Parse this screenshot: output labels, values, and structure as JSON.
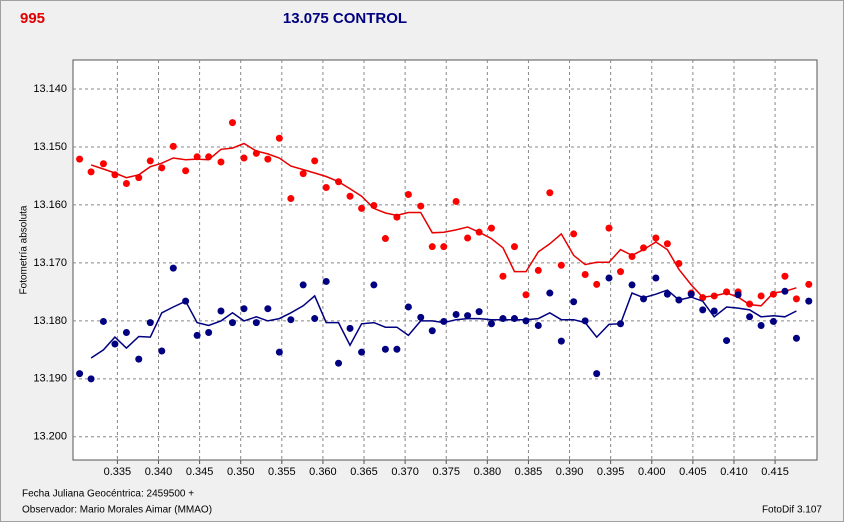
{
  "chart_data": {
    "type": "scatter",
    "label": "995",
    "title": "13.075 CONTROL",
    "ylabel": "Fotometría absoluta",
    "xlabel": "Fecha Juliana Geocéntrica: 2459500 +",
    "observer": "Observador: Mario Morales Aimar (MMAO)",
    "software": "FotoDif 3.107",
    "grid": true,
    "xlim": [
      0.3296,
      0.4201
    ],
    "ylim": [
      13.204,
      13.135
    ],
    "xticks": [
      0.335,
      {
        "value": 0.34,
        "label": "0.340"
      },
      0.345,
      {
        "value": 0.35,
        "label": "0.350"
      },
      0.355,
      {
        "value": 0.36,
        "label": "0.360"
      },
      0.365,
      {
        "value": 0.37,
        "label": "0.370"
      },
      0.375,
      {
        "value": 0.38,
        "label": "0.380"
      },
      0.385,
      {
        "value": 0.39,
        "label": "0.390"
      },
      0.395,
      {
        "value": 0.4,
        "label": "0.400"
      },
      0.405,
      {
        "value": 0.41,
        "label": "0.410"
      },
      0.415
    ],
    "yticks": [
      {
        "value": 13.14,
        "label": "13.140"
      },
      {
        "value": 13.15,
        "label": "13.150"
      },
      {
        "value": 13.16,
        "label": "13.160"
      },
      {
        "value": 13.17,
        "label": "13.170"
      },
      {
        "value": 13.18,
        "label": "13.180"
      },
      {
        "value": 13.19,
        "label": "13.190"
      },
      {
        "value": 13.2,
        "label": "13.200"
      }
    ],
    "x": [
      0.3304,
      0.3318,
      0.3333,
      0.3347,
      0.3361,
      0.3376,
      0.339,
      0.3404,
      0.3418,
      0.3433,
      0.3447,
      0.3461,
      0.3476,
      0.349,
      0.3504,
      0.3519,
      0.3533,
      0.3547,
      0.3561,
      0.3576,
      0.359,
      0.3604,
      0.3619,
      0.3633,
      0.3647,
      0.3662,
      0.3676,
      0.369,
      0.3704,
      0.3719,
      0.3733,
      0.3747,
      0.3762,
      0.3776,
      0.379,
      0.3805,
      0.3819,
      0.3833,
      0.3847,
      0.3862,
      0.3876,
      0.389,
      0.3905,
      0.3919,
      0.3933,
      0.3948,
      0.3962,
      0.3976,
      0.399,
      0.4005,
      0.4019,
      0.4033,
      0.4048,
      0.4062,
      0.4076,
      0.4091,
      0.4105,
      0.4119,
      0.4133,
      0.4148,
      0.4162,
      0.4176,
      0.4191
    ],
    "series": [
      {
        "draw": "dots",
        "color": "#ff0000",
        "values": [
          13.1521,
          13.1543,
          13.1529,
          13.1548,
          13.1563,
          13.1553,
          13.1524,
          13.1536,
          13.1499,
          13.1541,
          13.1517,
          13.1517,
          13.1526,
          13.1458,
          13.1519,
          13.1511,
          13.1521,
          13.1485,
          13.1589,
          13.1546,
          13.1524,
          13.157,
          13.156,
          13.1585,
          13.1606,
          13.1601,
          13.1658,
          13.1621,
          13.1582,
          13.1602,
          13.1672,
          13.1672,
          13.1594,
          13.1657,
          13.1647,
          13.164,
          13.1723,
          13.1672,
          13.1755,
          13.1713,
          13.1579,
          13.1704,
          13.165,
          13.172,
          13.1737,
          13.164,
          13.1715,
          13.1689,
          13.1674,
          13.1657,
          13.1667,
          13.1701,
          13.1752,
          13.176,
          13.1757,
          13.175,
          13.175,
          13.1771,
          13.1757,
          13.1754,
          13.1723,
          13.1762,
          13.1737
        ]
      },
      {
        "draw": "line",
        "color": "#e80000",
        "values": [
          null,
          13.1531,
          13.1538,
          13.1545,
          13.1553,
          13.1548,
          13.1534,
          13.1528,
          13.1519,
          13.1522,
          13.1521,
          13.1522,
          13.1504,
          13.1502,
          13.1494,
          13.1507,
          13.1512,
          13.1519,
          13.1533,
          13.1539,
          13.1545,
          13.1551,
          13.156,
          13.1572,
          13.1585,
          13.1606,
          13.1614,
          13.1618,
          13.1613,
          13.1613,
          13.1648,
          13.1647,
          13.1643,
          13.1638,
          13.1647,
          13.1658,
          13.1674,
          13.1715,
          13.1715,
          13.1681,
          13.1667,
          13.165,
          13.1687,
          13.1703,
          13.1699,
          13.1699,
          13.1677,
          13.1687,
          13.1677,
          13.1664,
          13.1677,
          13.1711,
          13.1738,
          13.1759,
          13.1757,
          13.1752,
          13.1759,
          13.1772,
          13.1774,
          13.1752,
          13.1749,
          13.1743,
          null
        ]
      },
      {
        "draw": "dots",
        "color": "#000080",
        "values": [
          13.1891,
          13.19,
          13.1801,
          13.184,
          13.182,
          13.1866,
          13.1803,
          13.1852,
          13.1709,
          13.1766,
          13.1825,
          13.182,
          13.1783,
          13.1803,
          13.1779,
          13.1803,
          13.1779,
          13.1854,
          13.1798,
          13.1738,
          13.1796,
          13.1732,
          13.1873,
          13.1813,
          13.1854,
          13.1738,
          13.1849,
          13.1849,
          13.1776,
          13.1794,
          13.1817,
          13.1801,
          13.1789,
          13.1791,
          13.1784,
          13.1805,
          13.1796,
          13.1796,
          13.18,
          13.1808,
          13.1752,
          13.1835,
          13.1767,
          13.18,
          13.1891,
          13.1726,
          13.1805,
          13.1738,
          13.1762,
          13.1726,
          13.1754,
          13.1764,
          13.1754,
          13.1781,
          13.1783,
          13.1834,
          13.1755,
          13.1793,
          13.1808,
          13.1801,
          13.1749,
          13.183,
          13.1766
        ]
      },
      {
        "draw": "line",
        "color": "#000080",
        "values": [
          null,
          13.1864,
          13.185,
          13.1828,
          13.1847,
          13.1827,
          13.1828,
          13.1786,
          13.1776,
          13.1766,
          13.1803,
          13.1808,
          13.18,
          13.1786,
          13.18,
          13.1793,
          13.18,
          13.1796,
          13.1786,
          13.1774,
          13.1757,
          13.1803,
          13.1803,
          13.1842,
          13.1805,
          13.1803,
          13.1811,
          13.1811,
          13.1825,
          13.18,
          13.18,
          13.1803,
          13.1798,
          13.1796,
          13.1796,
          13.1798,
          13.1798,
          13.1798,
          13.1798,
          13.1796,
          13.1786,
          13.1798,
          13.1798,
          13.1803,
          13.1828,
          13.1806,
          13.1805,
          13.1752,
          13.176,
          13.1754,
          13.1747,
          13.1764,
          13.1759,
          13.1766,
          13.1793,
          13.1776,
          13.1778,
          13.1781,
          13.1793,
          13.1791,
          13.1793,
          13.1783,
          null
        ]
      }
    ]
  }
}
